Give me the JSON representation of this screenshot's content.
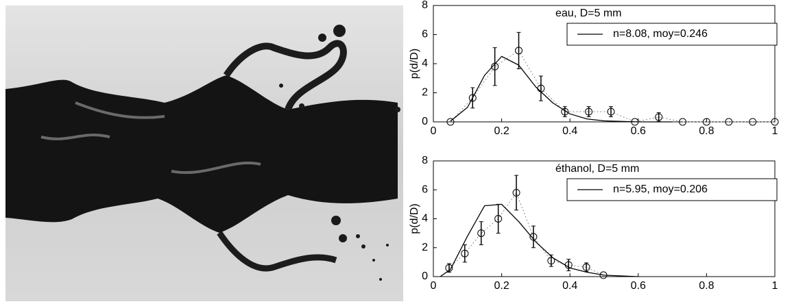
{
  "chart_data": [
    {
      "type": "scatter",
      "title": "eau, D=5 mm",
      "y_label": "p(d/D)",
      "xlim": [
        0,
        1
      ],
      "xticks": [
        0,
        0.2,
        0.4,
        0.6,
        0.8,
        1
      ],
      "ylim": [
        0,
        8
      ],
      "yticks": [
        0,
        2,
        4,
        6,
        8
      ],
      "legend": "upper right",
      "series": [
        {
          "color": "#000000",
          "marker": "circle",
          "x": [
            0.05,
            0.115,
            0.18,
            0.25,
            0.315,
            0.385,
            0.455,
            0.52,
            0.59,
            0.66,
            0.73,
            0.8,
            0.865,
            0.935,
            1.0
          ],
          "values": [
            0,
            1.65,
            3.8,
            4.9,
            2.3,
            0.7,
            0.7,
            0.7,
            0,
            0.33,
            0,
            0,
            0,
            0,
            0
          ],
          "errors": [
            0,
            0.7,
            1.3,
            1.25,
            0.85,
            0.35,
            0.35,
            0.35,
            0,
            0.3,
            0,
            0,
            0,
            0,
            0
          ]
        },
        {
          "name": "n=8.08, moy=0.246",
          "color": "#000000",
          "x": [
            0.05,
            0.1,
            0.15,
            0.2,
            0.25,
            0.3,
            0.35,
            0.4,
            0.45,
            0.5,
            0.6,
            0.7
          ],
          "values": [
            0.05,
            1.0,
            3.2,
            4.5,
            3.9,
            2.4,
            1.3,
            0.55,
            0.2,
            0.07,
            0,
            0
          ]
        }
      ]
    },
    {
      "type": "scatter",
      "title": "éthanol, D=5 mm",
      "y_label": "p(d/D)",
      "xlim": [
        0,
        1
      ],
      "xticks": [
        0,
        0.2,
        0.4,
        0.6,
        0.8,
        1
      ],
      "ylim": [
        0,
        8
      ],
      "yticks": [
        0,
        2,
        4,
        6,
        8
      ],
      "legend": "upper right",
      "series": [
        {
          "color": "#000000",
          "marker": "circle",
          "x": [
            0.046,
            0.092,
            0.14,
            0.19,
            0.243,
            0.293,
            0.345,
            0.396,
            0.448,
            0.498
          ],
          "values": [
            0.6,
            1.6,
            3.0,
            4.0,
            5.8,
            2.75,
            1.1,
            0.8,
            0.65,
            0.1
          ],
          "errors": [
            0.3,
            0.6,
            0.8,
            1.0,
            1.2,
            0.75,
            0.4,
            0.4,
            0.3,
            0
          ]
        },
        {
          "name": "n=5.95, moy=0.206",
          "color": "#000000",
          "x": [
            0.02,
            0.05,
            0.1,
            0.15,
            0.2,
            0.25,
            0.3,
            0.35,
            0.4,
            0.45,
            0.5,
            0.6
          ],
          "values": [
            0,
            0.5,
            2.8,
            4.9,
            5.0,
            3.8,
            2.4,
            1.3,
            0.6,
            0.3,
            0.1,
            0
          ]
        }
      ]
    }
  ]
}
